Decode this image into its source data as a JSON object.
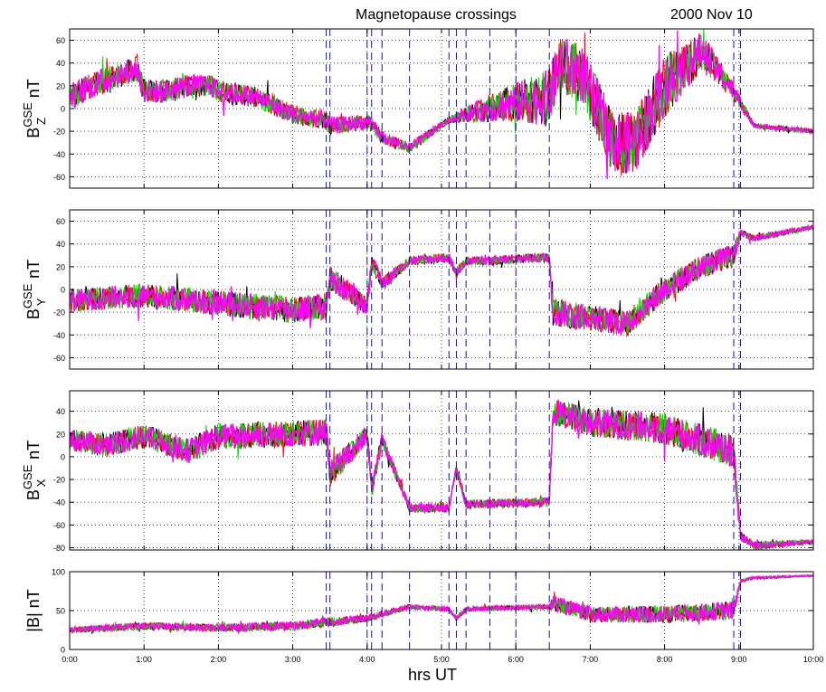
{
  "title": "Magnetopause crossings",
  "date": "2000  Nov  10",
  "colors": {
    "black": "#000000",
    "red": "#ff0000",
    "green": "#00dd00",
    "magenta": "#ff00ff",
    "crossing": "#1010a0",
    "grid": "#000000"
  },
  "chart_data": {
    "type": "line",
    "xlabel": "hrs  UT",
    "xlim": [
      0,
      10
    ],
    "xticks": [
      {
        "value": 0,
        "label": "0:00"
      },
      {
        "value": 1,
        "label": "1:00"
      },
      {
        "value": 2,
        "label": "2:00"
      },
      {
        "value": 3,
        "label": "3:00"
      },
      {
        "value": 4,
        "label": "4:00"
      },
      {
        "value": 5,
        "label": "5:00"
      },
      {
        "value": 6,
        "label": "6:00"
      },
      {
        "value": 7,
        "label": "7:00"
      },
      {
        "value": 8,
        "label": "8:00"
      },
      {
        "value": 9,
        "label": "9:00"
      },
      {
        "value": 10,
        "label": "10:00"
      }
    ],
    "crossings": [
      3.45,
      3.5,
      4.0,
      4.06,
      4.2,
      4.57,
      5.1,
      5.2,
      5.33,
      5.65,
      6.0,
      6.45,
      8.93,
      9.02
    ],
    "grid": true,
    "series_colors": [
      "#000000",
      "#ff0000",
      "#00dd00",
      "#ff00ff"
    ],
    "panels": [
      {
        "id": "bz",
        "label": "B_Z^GSE nT",
        "label_main": "B",
        "label_sup": "GSE",
        "label_sub": "Z",
        "label_unit": "nT",
        "ylim": [
          -70,
          70
        ],
        "yticks": [
          -60,
          -40,
          -20,
          0,
          20,
          40,
          60
        ],
        "profile": [
          [
            0,
            10
          ],
          [
            0.3,
            20
          ],
          [
            0.6,
            28
          ],
          [
            0.9,
            35
          ],
          [
            1.0,
            15
          ],
          [
            1.3,
            15
          ],
          [
            1.6,
            20
          ],
          [
            1.9,
            20
          ],
          [
            2.0,
            15
          ],
          [
            2.5,
            10
          ],
          [
            3.0,
            -5
          ],
          [
            3.45,
            -10
          ],
          [
            3.5,
            -15
          ],
          [
            4.0,
            -12
          ],
          [
            4.06,
            -15
          ],
          [
            4.2,
            -25
          ],
          [
            4.57,
            -35
          ],
          [
            5.1,
            -10
          ],
          [
            5.33,
            -5
          ],
          [
            5.65,
            0
          ],
          [
            6.0,
            5
          ],
          [
            6.45,
            10
          ],
          [
            6.6,
            40
          ],
          [
            6.9,
            30
          ],
          [
            7.3,
            -30
          ],
          [
            7.6,
            -30
          ],
          [
            8.0,
            20
          ],
          [
            8.5,
            50
          ],
          [
            8.93,
            15
          ],
          [
            9.02,
            5
          ],
          [
            9.2,
            -15
          ],
          [
            10,
            -20
          ]
        ],
        "noise": [
          [
            0,
            12
          ],
          [
            3.45,
            8
          ],
          [
            4.57,
            5
          ],
          [
            5.1,
            3
          ],
          [
            6.45,
            25
          ],
          [
            8.0,
            28
          ],
          [
            9.02,
            6
          ],
          [
            9.2,
            2
          ],
          [
            10,
            2
          ]
        ]
      },
      {
        "id": "by",
        "label": "B_Y^GSE nT",
        "label_main": "B",
        "label_sup": "GSE",
        "label_sub": "Y",
        "label_unit": "nT",
        "ylim": [
          -70,
          70
        ],
        "yticks": [
          -60,
          -40,
          -20,
          0,
          20,
          40,
          60
        ],
        "profile": [
          [
            0,
            -10
          ],
          [
            1.0,
            -5
          ],
          [
            2.0,
            -12
          ],
          [
            3.0,
            -18
          ],
          [
            3.45,
            -15
          ],
          [
            3.5,
            10
          ],
          [
            4.0,
            -15
          ],
          [
            4.06,
            25
          ],
          [
            4.2,
            5
          ],
          [
            4.57,
            25
          ],
          [
            5.1,
            28
          ],
          [
            5.2,
            15
          ],
          [
            5.33,
            25
          ],
          [
            5.65,
            25
          ],
          [
            6.0,
            27
          ],
          [
            6.45,
            28
          ],
          [
            6.5,
            -20
          ],
          [
            7.0,
            -25
          ],
          [
            7.5,
            -30
          ],
          [
            8.0,
            0
          ],
          [
            8.5,
            20
          ],
          [
            8.93,
            30
          ],
          [
            9.02,
            50
          ],
          [
            9.2,
            45
          ],
          [
            10,
            55
          ]
        ],
        "noise": [
          [
            0,
            10
          ],
          [
            3.45,
            12
          ],
          [
            4.57,
            4
          ],
          [
            6.45,
            4
          ],
          [
            6.5,
            12
          ],
          [
            8.93,
            10
          ],
          [
            9.02,
            3
          ],
          [
            10,
            2
          ]
        ]
      },
      {
        "id": "bx",
        "label": "B_X^GSE nT",
        "label_main": "B",
        "label_sup": "GSE",
        "label_sub": "X",
        "label_unit": "nT",
        "ylim": [
          -82,
          58
        ],
        "yticks": [
          -80,
          -60,
          -40,
          -20,
          0,
          20,
          40
        ],
        "profile": [
          [
            0,
            15
          ],
          [
            0.5,
            10
          ],
          [
            1.0,
            18
          ],
          [
            1.6,
            5
          ],
          [
            2.0,
            18
          ],
          [
            3.0,
            20
          ],
          [
            3.45,
            22
          ],
          [
            3.5,
            -15
          ],
          [
            4.0,
            20
          ],
          [
            4.06,
            -30
          ],
          [
            4.2,
            15
          ],
          [
            4.57,
            -45
          ],
          [
            5.1,
            -45
          ],
          [
            5.2,
            -10
          ],
          [
            5.33,
            -42
          ],
          [
            6.45,
            -40
          ],
          [
            6.5,
            40
          ],
          [
            7.0,
            30
          ],
          [
            8.0,
            25
          ],
          [
            8.93,
            5
          ],
          [
            9.02,
            -70
          ],
          [
            9.2,
            -78
          ],
          [
            10,
            -75
          ]
        ],
        "noise": [
          [
            0,
            10
          ],
          [
            3.45,
            12
          ],
          [
            4.57,
            4
          ],
          [
            6.45,
            4
          ],
          [
            6.5,
            12
          ],
          [
            8.93,
            15
          ],
          [
            9.02,
            4
          ],
          [
            10,
            2
          ]
        ]
      },
      {
        "id": "bt",
        "label": "|B| nT",
        "ylim": [
          0,
          100
        ],
        "yticks": [
          0,
          50,
          100
        ],
        "profile": [
          [
            0,
            25
          ],
          [
            1.0,
            30
          ],
          [
            2.0,
            28
          ],
          [
            3.0,
            30
          ],
          [
            3.45,
            35
          ],
          [
            4.0,
            40
          ],
          [
            4.57,
            55
          ],
          [
            5.1,
            52
          ],
          [
            5.2,
            40
          ],
          [
            5.33,
            52
          ],
          [
            6.45,
            55
          ],
          [
            6.5,
            60
          ],
          [
            7.0,
            45
          ],
          [
            8.0,
            45
          ],
          [
            8.93,
            50
          ],
          [
            9.02,
            88
          ],
          [
            9.2,
            92
          ],
          [
            10,
            95
          ]
        ],
        "noise": [
          [
            0,
            4
          ],
          [
            3.45,
            6
          ],
          [
            4.57,
            3
          ],
          [
            6.45,
            3
          ],
          [
            6.5,
            10
          ],
          [
            8.93,
            12
          ],
          [
            9.02,
            2
          ],
          [
            10,
            1
          ]
        ]
      }
    ]
  }
}
